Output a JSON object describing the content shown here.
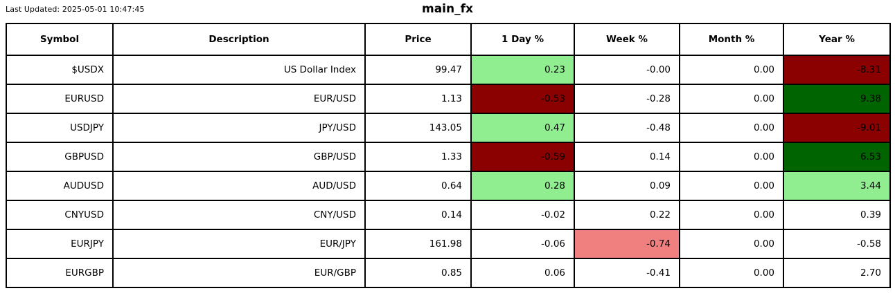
{
  "header": {
    "last_updated": "Last Updated: 2025-05-01 10:47:45",
    "title": "main_fx"
  },
  "colors": {
    "background": "#FFFFFF",
    "border": "#000000",
    "text": "#000000",
    "light_green": "#90EE90",
    "dark_green": "#006400",
    "dark_red": "#8B0000",
    "light_red": "#F08080"
  },
  "chart_data": {
    "type": "table",
    "title": "main_fx",
    "columns": [
      "Symbol",
      "Description",
      "Price",
      "1 Day %",
      "Week %",
      "Month %",
      "Year %"
    ],
    "rows": [
      {
        "symbol": "$USDX",
        "description": "US Dollar Index",
        "price": "99.47",
        "day": "0.23",
        "week": "-0.00",
        "month": "0.00",
        "year": "-8.31",
        "cell_colors": {
          "day": "light_green",
          "year": "dark_red"
        }
      },
      {
        "symbol": "EURUSD",
        "description": "EUR/USD",
        "price": "1.13",
        "day": "-0.53",
        "week": "-0.28",
        "month": "0.00",
        "year": "9.38",
        "cell_colors": {
          "day": "dark_red",
          "year": "dark_green"
        }
      },
      {
        "symbol": "USDJPY",
        "description": "JPY/USD",
        "price": "143.05",
        "day": "0.47",
        "week": "-0.48",
        "month": "0.00",
        "year": "-9.01",
        "cell_colors": {
          "day": "light_green",
          "year": "dark_red"
        }
      },
      {
        "symbol": "GBPUSD",
        "description": "GBP/USD",
        "price": "1.33",
        "day": "-0.59",
        "week": "0.14",
        "month": "0.00",
        "year": "6.53",
        "cell_colors": {
          "day": "dark_red",
          "year": "dark_green"
        }
      },
      {
        "symbol": "AUDUSD",
        "description": "AUD/USD",
        "price": "0.64",
        "day": "0.28",
        "week": "0.09",
        "month": "0.00",
        "year": "3.44",
        "cell_colors": {
          "day": "light_green",
          "year": "light_green"
        }
      },
      {
        "symbol": "CNYUSD",
        "description": "CNY/USD",
        "price": "0.14",
        "day": "-0.02",
        "week": "0.22",
        "month": "0.00",
        "year": "0.39",
        "cell_colors": {}
      },
      {
        "symbol": "EURJPY",
        "description": "EUR/JPY",
        "price": "161.98",
        "day": "-0.06",
        "week": "-0.74",
        "month": "0.00",
        "year": "-0.58",
        "cell_colors": {
          "week": "light_red"
        }
      },
      {
        "symbol": "EURGBP",
        "description": "EUR/GBP",
        "price": "0.85",
        "day": "0.06",
        "week": "-0.41",
        "month": "0.00",
        "year": "2.70",
        "cell_colors": {}
      }
    ]
  }
}
